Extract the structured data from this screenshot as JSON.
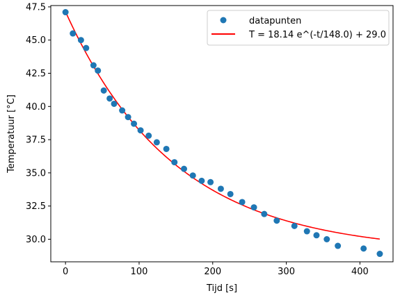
{
  "chart_data": {
    "type": "scatter",
    "title": "",
    "xlabel": "Tijd [s]",
    "ylabel": "Temperatuur [°C]",
    "xlim": [
      -20,
      445
    ],
    "ylim": [
      28.3,
      47.6
    ],
    "xticks": [
      0,
      100,
      200,
      300,
      400
    ],
    "xtick_labels": [
      "0",
      "100",
      "200",
      "300",
      "400"
    ],
    "yticks": [
      30.0,
      32.5,
      35.0,
      37.5,
      40.0,
      42.5,
      45.0,
      47.5
    ],
    "ytick_labels": [
      "30.0",
      "32.5",
      "35.0",
      "37.5",
      "40.0",
      "42.5",
      "45.0",
      "47.5"
    ],
    "grid": false,
    "legend_position": "top-right",
    "series": [
      {
        "name": "datapunten",
        "kind": "points",
        "color": "#1f77b4",
        "x": [
          0,
          10,
          21,
          28,
          38,
          44,
          52,
          60,
          66,
          77,
          85,
          93,
          102,
          113,
          124,
          137,
          148,
          161,
          173,
          185,
          197,
          211,
          224,
          240,
          256,
          270,
          287,
          311,
          328,
          341,
          355,
          370,
          405,
          427
        ],
        "y": [
          47.1,
          45.5,
          45.0,
          44.4,
          43.1,
          42.7,
          41.2,
          40.6,
          40.2,
          39.7,
          39.2,
          38.7,
          38.2,
          37.8,
          37.3,
          36.8,
          35.8,
          35.3,
          34.8,
          34.4,
          34.3,
          33.8,
          33.4,
          32.8,
          32.4,
          31.9,
          31.4,
          31.0,
          30.6,
          30.3,
          30.0,
          29.5,
          29.3,
          28.9
        ]
      },
      {
        "name": "T = 18.14 e^(-t/148.0) + 29.0",
        "kind": "line",
        "color": "#ff0000",
        "fit": {
          "a": 18.14,
          "tau": 148.0,
          "c": 29.0,
          "t_min": 0,
          "t_max": 427
        }
      }
    ]
  }
}
